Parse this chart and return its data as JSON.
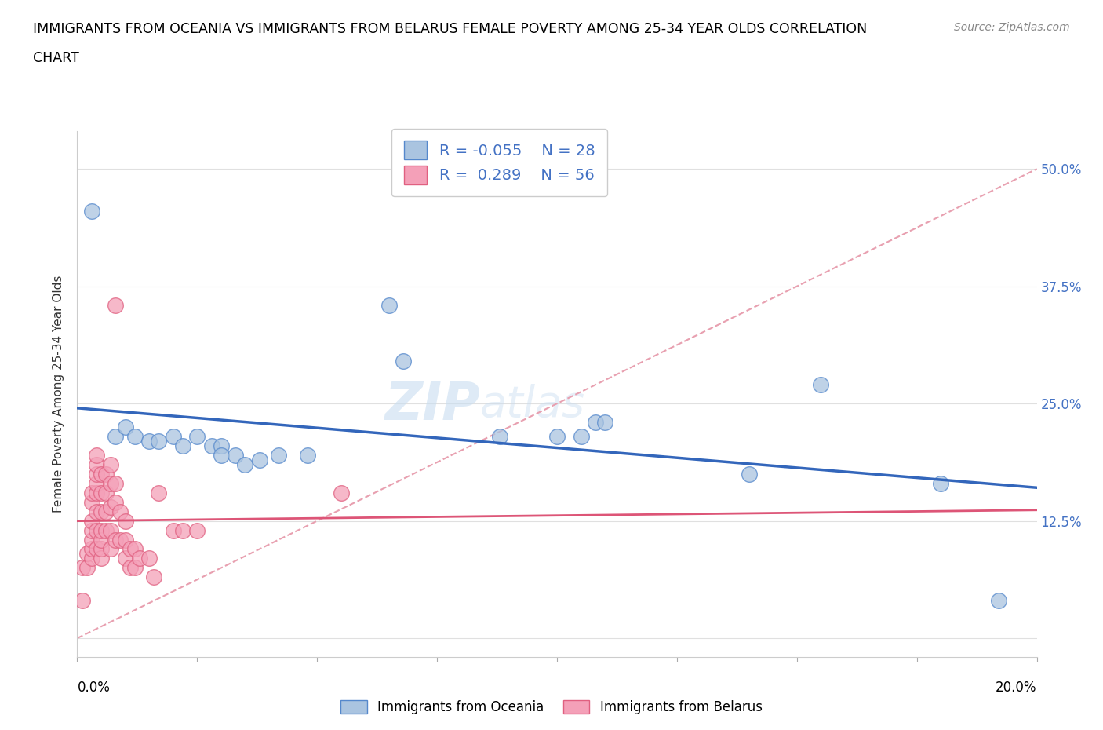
{
  "title_line1": "IMMIGRANTS FROM OCEANIA VS IMMIGRANTS FROM BELARUS FEMALE POVERTY AMONG 25-34 YEAR OLDS CORRELATION",
  "title_line2": "CHART",
  "source": "Source: ZipAtlas.com",
  "ylabel": "Female Poverty Among 25-34 Year Olds",
  "ytick_vals": [
    0.0,
    0.125,
    0.25,
    0.375,
    0.5
  ],
  "ytick_labels": [
    "",
    "12.5%",
    "25.0%",
    "37.5%",
    "50.0%"
  ],
  "xlim": [
    0.0,
    0.2
  ],
  "ylim": [
    -0.02,
    0.54
  ],
  "watermark_zip": "ZIP",
  "watermark_atlas": "atlas",
  "legend_R_oceania": "-0.055",
  "legend_N_oceania": "28",
  "legend_R_belarus": "0.289",
  "legend_N_belarus": "56",
  "oceania_color": "#aac4e0",
  "oceania_edge": "#5588cc",
  "belarus_color": "#f4a0b8",
  "belarus_edge": "#e06080",
  "trendline_oceania_color": "#3366bb",
  "trendline_belarus_color": "#dd5577",
  "refline_color": "#e8a0b0",
  "grid_color": "#e0e0e0",
  "oceania_scatter": [
    [
      0.003,
      0.455
    ],
    [
      0.065,
      0.355
    ],
    [
      0.068,
      0.295
    ],
    [
      0.008,
      0.215
    ],
    [
      0.01,
      0.225
    ],
    [
      0.012,
      0.215
    ],
    [
      0.015,
      0.21
    ],
    [
      0.017,
      0.21
    ],
    [
      0.02,
      0.215
    ],
    [
      0.022,
      0.205
    ],
    [
      0.025,
      0.215
    ],
    [
      0.028,
      0.205
    ],
    [
      0.03,
      0.205
    ],
    [
      0.03,
      0.195
    ],
    [
      0.033,
      0.195
    ],
    [
      0.035,
      0.185
    ],
    [
      0.038,
      0.19
    ],
    [
      0.042,
      0.195
    ],
    [
      0.048,
      0.195
    ],
    [
      0.088,
      0.215
    ],
    [
      0.1,
      0.215
    ],
    [
      0.105,
      0.215
    ],
    [
      0.108,
      0.23
    ],
    [
      0.11,
      0.23
    ],
    [
      0.14,
      0.175
    ],
    [
      0.155,
      0.27
    ],
    [
      0.18,
      0.165
    ],
    [
      0.192,
      0.04
    ]
  ],
  "belarus_scatter": [
    [
      0.001,
      0.04
    ],
    [
      0.001,
      0.075
    ],
    [
      0.002,
      0.075
    ],
    [
      0.002,
      0.09
    ],
    [
      0.003,
      0.085
    ],
    [
      0.003,
      0.095
    ],
    [
      0.003,
      0.105
    ],
    [
      0.003,
      0.115
    ],
    [
      0.003,
      0.125
    ],
    [
      0.003,
      0.145
    ],
    [
      0.003,
      0.155
    ],
    [
      0.004,
      0.095
    ],
    [
      0.004,
      0.115
    ],
    [
      0.004,
      0.135
    ],
    [
      0.004,
      0.155
    ],
    [
      0.004,
      0.165
    ],
    [
      0.004,
      0.175
    ],
    [
      0.004,
      0.185
    ],
    [
      0.004,
      0.195
    ],
    [
      0.005,
      0.085
    ],
    [
      0.005,
      0.095
    ],
    [
      0.005,
      0.105
    ],
    [
      0.005,
      0.115
    ],
    [
      0.005,
      0.135
    ],
    [
      0.005,
      0.155
    ],
    [
      0.005,
      0.175
    ],
    [
      0.006,
      0.115
    ],
    [
      0.006,
      0.135
    ],
    [
      0.006,
      0.155
    ],
    [
      0.006,
      0.175
    ],
    [
      0.007,
      0.095
    ],
    [
      0.007,
      0.115
    ],
    [
      0.007,
      0.14
    ],
    [
      0.007,
      0.165
    ],
    [
      0.007,
      0.185
    ],
    [
      0.008,
      0.105
    ],
    [
      0.008,
      0.145
    ],
    [
      0.008,
      0.165
    ],
    [
      0.009,
      0.105
    ],
    [
      0.009,
      0.135
    ],
    [
      0.01,
      0.085
    ],
    [
      0.01,
      0.105
    ],
    [
      0.01,
      0.125
    ],
    [
      0.011,
      0.075
    ],
    [
      0.011,
      0.095
    ],
    [
      0.012,
      0.075
    ],
    [
      0.012,
      0.095
    ],
    [
      0.013,
      0.085
    ],
    [
      0.015,
      0.085
    ],
    [
      0.016,
      0.065
    ],
    [
      0.017,
      0.155
    ],
    [
      0.02,
      0.115
    ],
    [
      0.022,
      0.115
    ],
    [
      0.025,
      0.115
    ],
    [
      0.008,
      0.355
    ],
    [
      0.055,
      0.155
    ]
  ]
}
